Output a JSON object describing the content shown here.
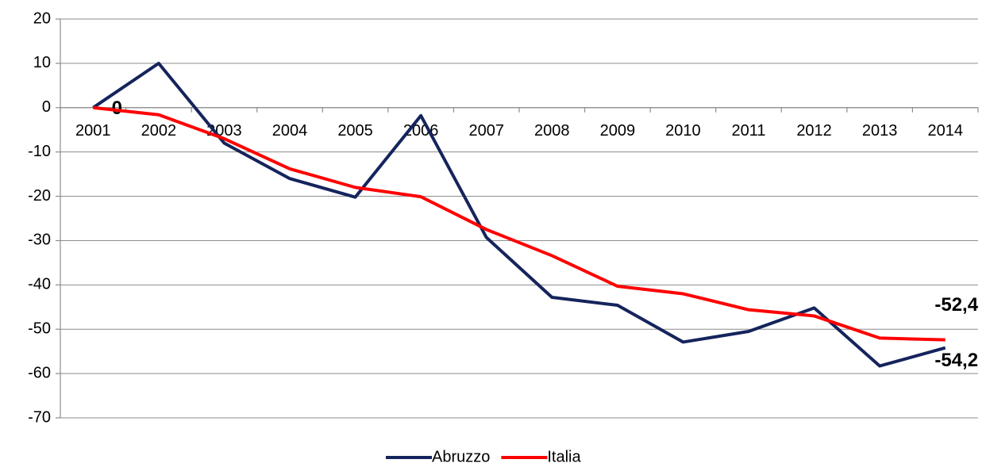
{
  "chart_data": {
    "type": "line",
    "categories": [
      "2001",
      "2002",
      "2003",
      "2004",
      "2005",
      "2006",
      "2007",
      "2008",
      "2009",
      "2010",
      "2011",
      "2012",
      "2013",
      "2014"
    ],
    "series": [
      {
        "name": "Abruzzo",
        "color": "#15245c",
        "values": [
          0,
          10,
          -8,
          -16,
          -20.2,
          -1.8,
          -29.3,
          -42.8,
          -44.6,
          -52.9,
          -50.5,
          -45.2,
          -58.3,
          -54.2
        ],
        "value_labels": [
          "0",
          null,
          null,
          null,
          null,
          null,
          null,
          null,
          null,
          null,
          null,
          null,
          null,
          "-54,2"
        ]
      },
      {
        "name": "Italia",
        "color": "#ff0000",
        "values": [
          0,
          -1.6,
          -7,
          -13.8,
          -18,
          -20.1,
          -27.5,
          -33.4,
          -40.3,
          -42,
          -45.6,
          -47,
          -52,
          -52.4
        ],
        "value_labels": [
          null,
          null,
          null,
          null,
          null,
          null,
          null,
          null,
          null,
          null,
          null,
          null,
          null,
          "-52,4"
        ]
      }
    ],
    "ylim": [
      -70,
      20
    ],
    "yticks": [
      -70,
      -60,
      -50,
      -40,
      -30,
      -20,
      -10,
      0,
      10,
      20
    ],
    "grid": true,
    "legend": "bottom"
  }
}
